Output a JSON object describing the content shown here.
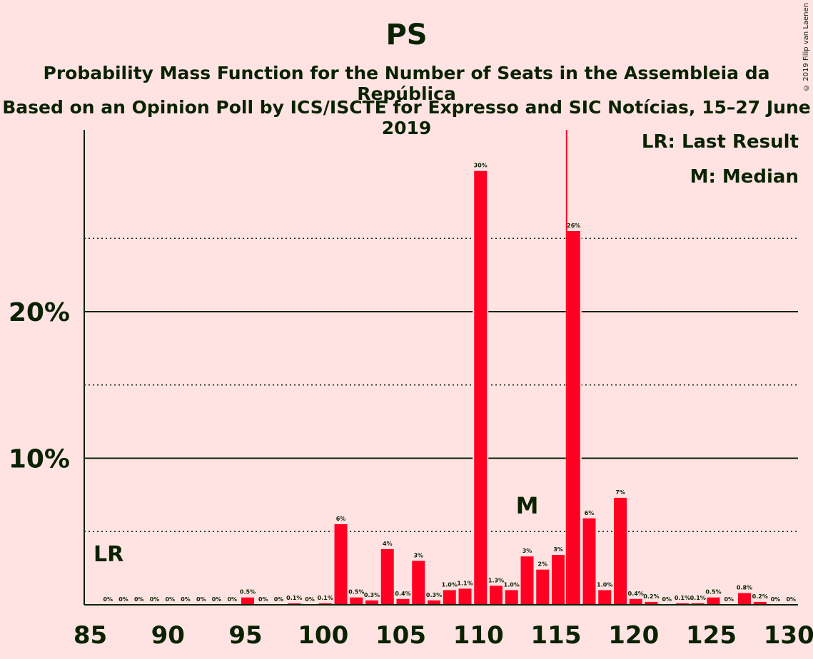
{
  "title": "PS",
  "subtitle1": "Probability Mass Function for the Number of Seats in the Assembleia da República",
  "subtitle2": "Based on an Opinion Poll by ICS/ISCTE for Expresso and SIC Notícias, 15–27 June 2019",
  "copyright": "© 2019 Filip van Laenen",
  "legend": {
    "lr": "LR: Last Result",
    "m": "M: Median"
  },
  "colors": {
    "bar": "#ff0022",
    "background": "#ffe3e3",
    "text": "#0a2200"
  },
  "chart_data": {
    "type": "bar",
    "x": [
      86,
      87,
      88,
      89,
      90,
      91,
      92,
      93,
      94,
      95,
      96,
      97,
      98,
      99,
      100,
      101,
      102,
      103,
      104,
      105,
      106,
      107,
      108,
      109,
      110,
      111,
      112,
      113,
      114,
      115,
      116,
      117,
      118,
      119,
      120,
      121,
      122,
      123,
      124,
      125,
      126,
      127,
      128,
      129,
      130
    ],
    "values": [
      0,
      0,
      0,
      0,
      0,
      0,
      0,
      0,
      0,
      0.5,
      0,
      0,
      0.1,
      0,
      0.1,
      5.5,
      0.5,
      0.3,
      3.8,
      0.4,
      3.0,
      0.3,
      1.0,
      1.1,
      29.6,
      1.3,
      1.0,
      3.3,
      2.4,
      3.4,
      25.5,
      5.9,
      1.0,
      7.3,
      0.4,
      0.2,
      0,
      0.1,
      0.1,
      0.5,
      0,
      0.8,
      0.2,
      0,
      0
    ],
    "labels": [
      "0%",
      "0%",
      "0%",
      "0%",
      "0%",
      "0%",
      "0%",
      "0%",
      "0%",
      "0.5%",
      "0%",
      "0%",
      "0.1%",
      "0%",
      "0.1%",
      "6%",
      "0.5%",
      "0.3%",
      "4%",
      "0.4%",
      "3%",
      "0.3%",
      "1.0%",
      "1.1%",
      "30%",
      "1.3%",
      "1.0%",
      "3%",
      "2%",
      "3%",
      "26%",
      "6%",
      "1.0%",
      "7%",
      "0.4%",
      "0.2%",
      "0%",
      "0.1%",
      "0.1%",
      "0.5%",
      "0%",
      "0.8%",
      "0.2%",
      "0%",
      "0%"
    ],
    "xticks": [
      "85",
      "90",
      "95",
      "100",
      "105",
      "110",
      "115",
      "120",
      "125",
      "130"
    ],
    "xtick_values": [
      85,
      90,
      95,
      100,
      105,
      110,
      115,
      120,
      125,
      130
    ],
    "yticks": [
      "10%",
      "20%"
    ],
    "ytick_values": [
      10,
      20
    ],
    "ylim": [
      0,
      32.3
    ],
    "xlim": [
      85,
      130
    ],
    "last_result": 116,
    "last_result_label": "LR",
    "median": 113,
    "median_label": "M",
    "grid": true
  }
}
